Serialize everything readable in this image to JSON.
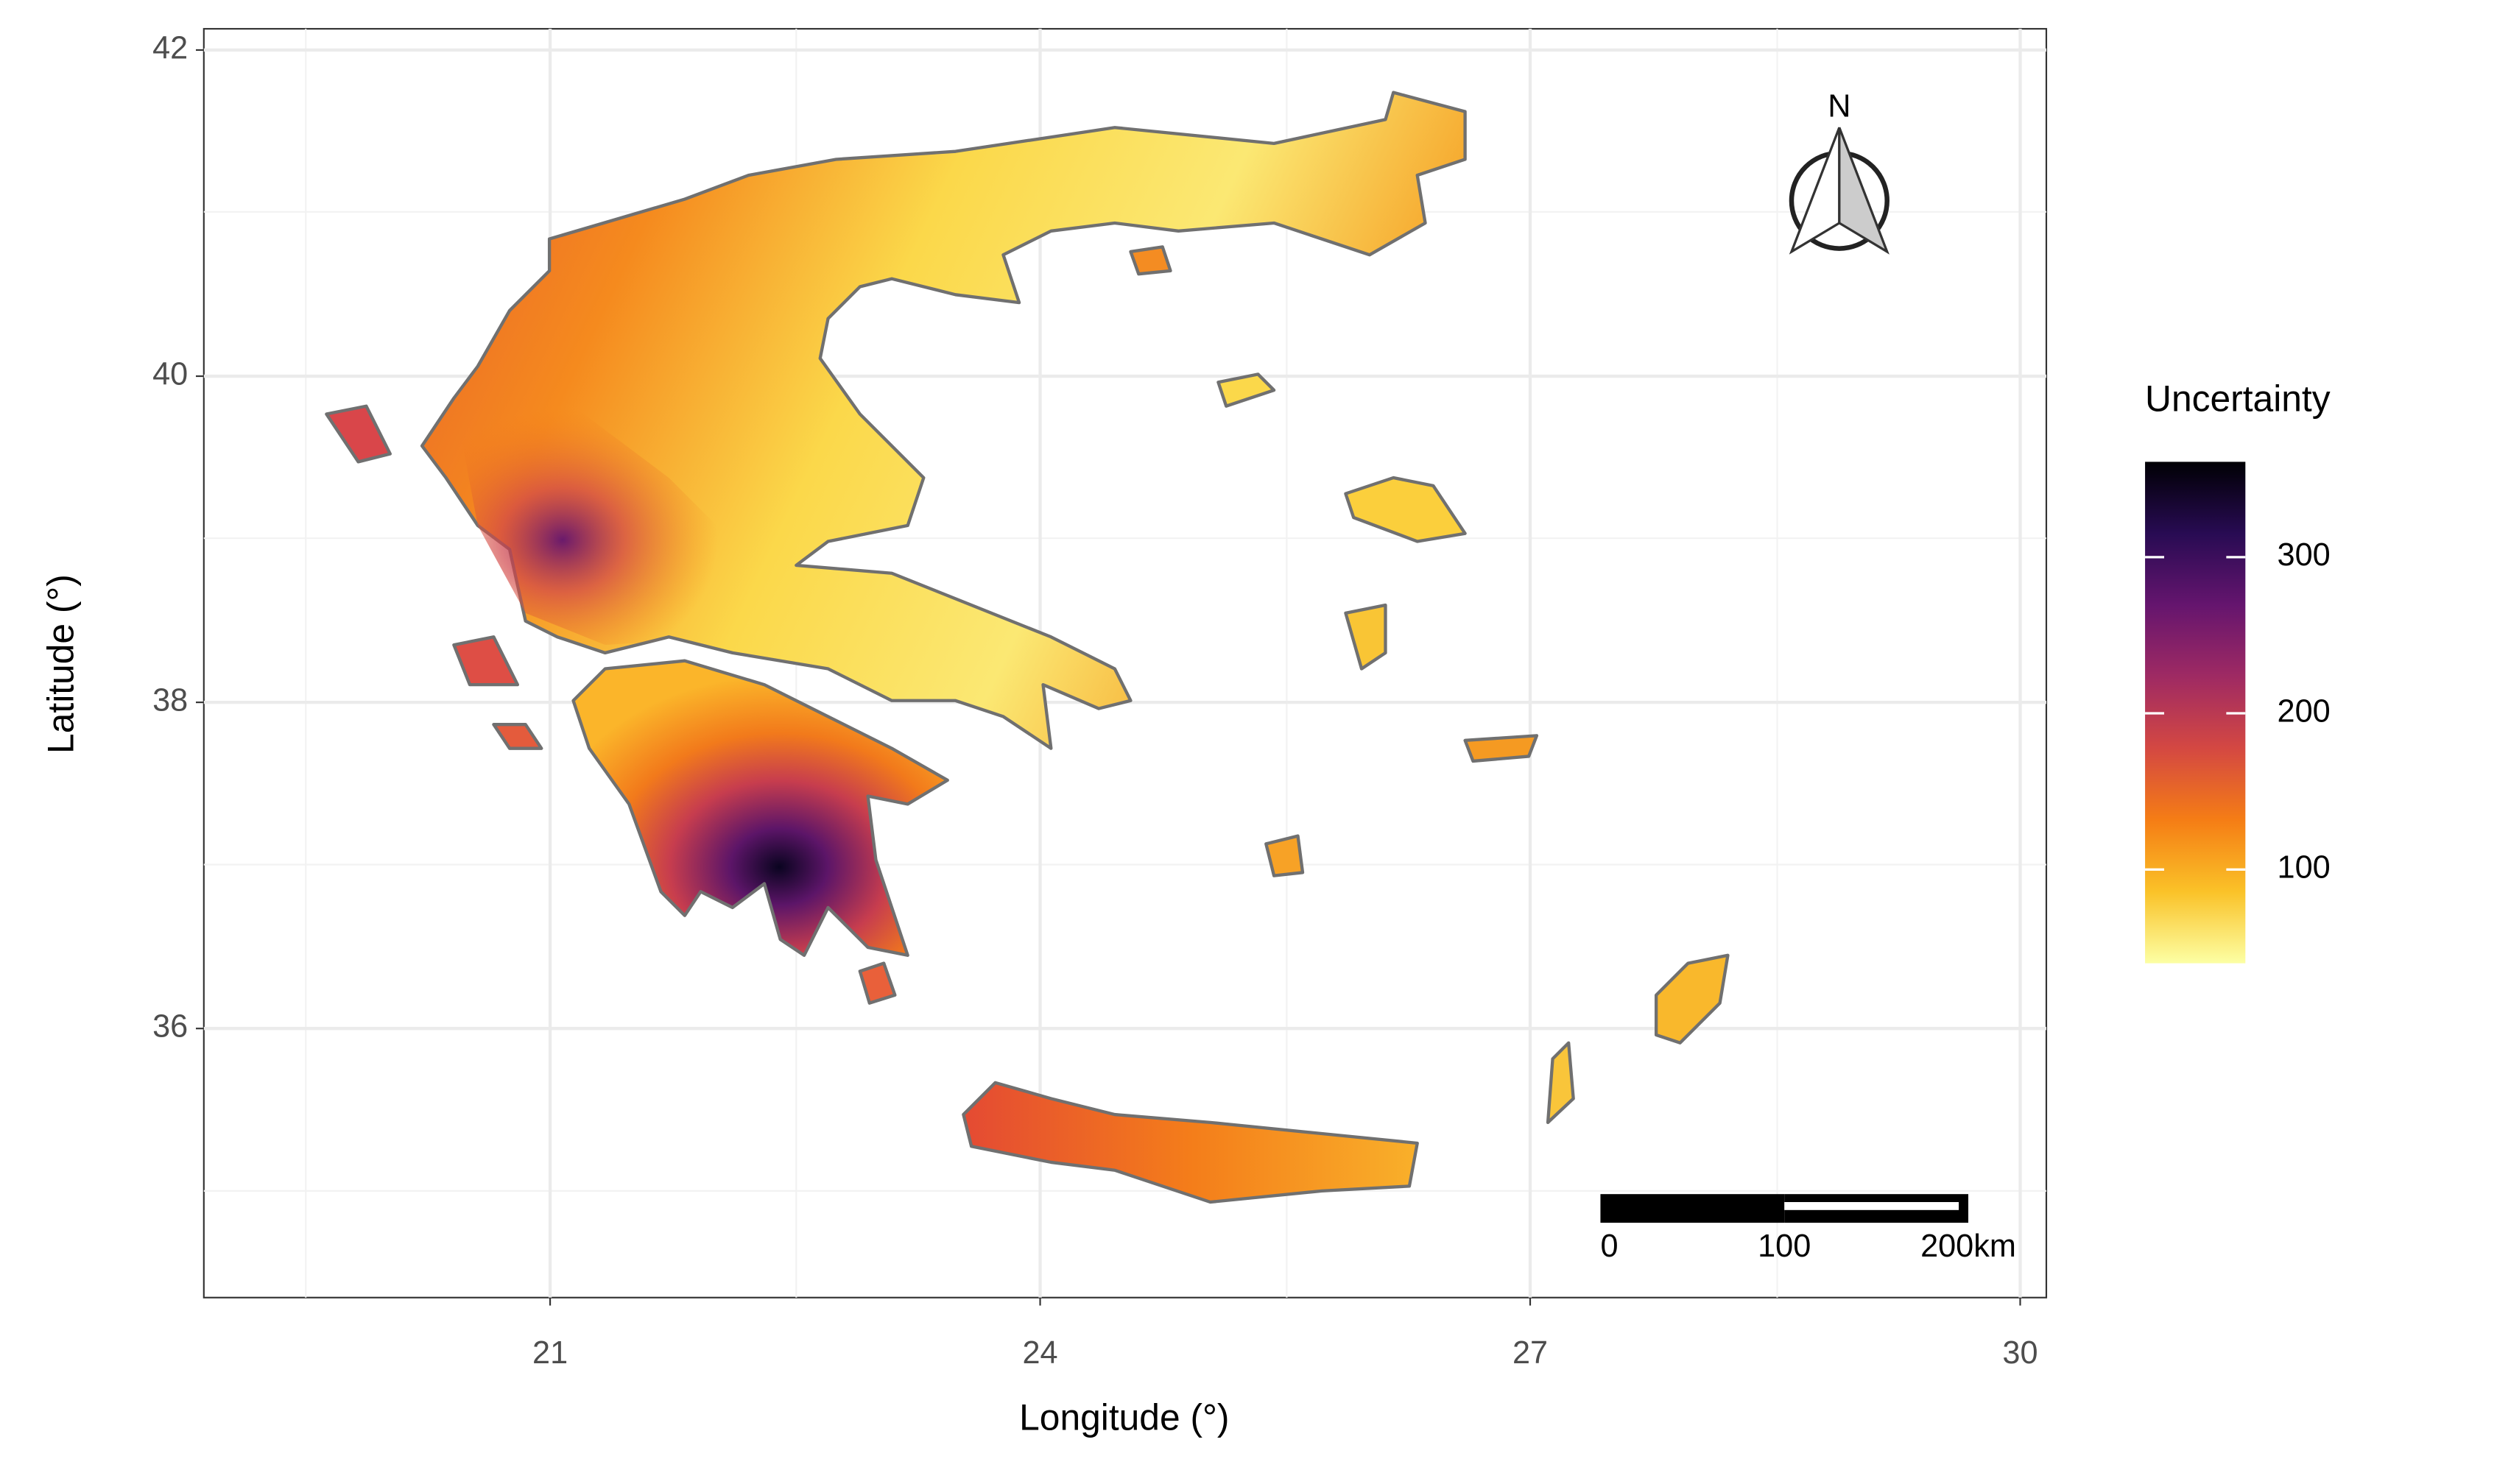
{
  "chart_data": {
    "type": "map",
    "x_label": "Longitude (°)",
    "y_label": "Latitude (°)",
    "xlim": [
      18.88,
      30.16
    ],
    "ylim": [
      34.35,
      42.13
    ],
    "xticks": [
      21,
      24,
      27,
      30
    ],
    "yticks": [
      36,
      38,
      40,
      42
    ],
    "grid": true,
    "legend": {
      "title": "Uncertainty",
      "range": [
        40,
        361
      ],
      "ticks": [
        100,
        200,
        300
      ],
      "colors": [
        "#fcffa4",
        "#fac228",
        "#f57d15",
        "#d44842",
        "#9f2a63",
        "#65156e",
        "#280b53",
        "#000004"
      ]
    },
    "scale_bar": {
      "ticks": [
        0,
        100,
        {
          "value": 200,
          "label": "200km"
        }
      ]
    },
    "north_arrow": "N"
  }
}
